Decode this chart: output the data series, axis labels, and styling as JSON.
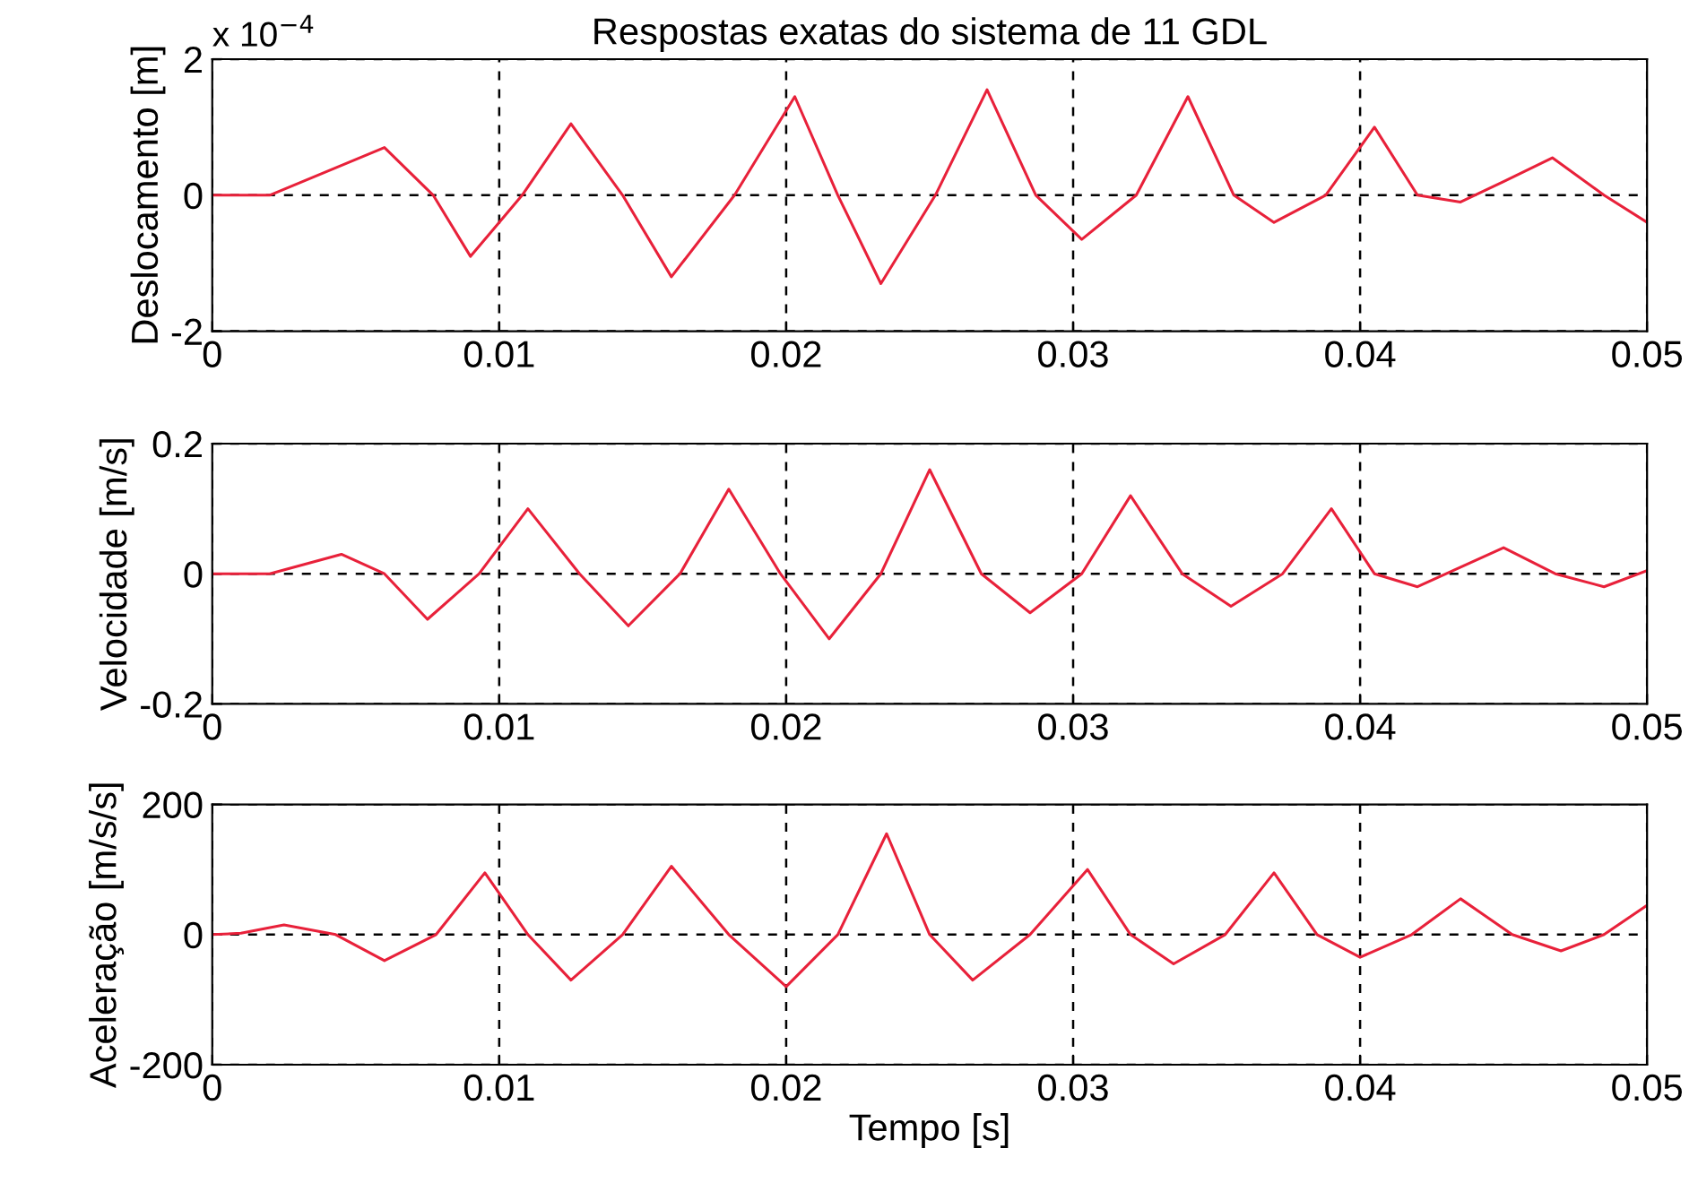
{
  "chart_data": [
    {
      "type": "line",
      "title": "Respostas exatas do sistema de 11 GDL",
      "ylabel": "Deslocamento [m]",
      "annotations": [
        "x 10$^{−4}$"
      ],
      "x": [
        0,
        0.002,
        0.006,
        0.0077,
        0.009,
        0.0108,
        0.0125,
        0.0143,
        0.016,
        0.0182,
        0.0203,
        0.0218,
        0.0233,
        0.0252,
        0.027,
        0.0287,
        0.0303,
        0.0322,
        0.034,
        0.0356,
        0.037,
        0.0388,
        0.0405,
        0.042,
        0.0435,
        0.045,
        0.0467,
        0.0485,
        0.05
      ],
      "series": [
        {
          "color": "#e8213a",
          "values": [
            0,
            0,
            0.7,
            0,
            -0.9,
            0,
            1.05,
            0,
            -1.2,
            0,
            1.45,
            0,
            -1.3,
            0,
            1.55,
            0,
            -0.65,
            0,
            1.45,
            0,
            -0.4,
            0,
            1.0,
            0,
            -0.1,
            0.2,
            0.55,
            0,
            -0.4
          ]
        }
      ],
      "xlim": [
        0,
        0.05
      ],
      "xticks": [
        0,
        0.01,
        0.02,
        0.03,
        0.04,
        0.05
      ],
      "ylim": [
        -2,
        2
      ],
      "yticks": [
        -2,
        0,
        2
      ],
      "grid": true,
      "line_style": "solid"
    },
    {
      "type": "line",
      "ylabel": "Velocidade [m/s]",
      "x": [
        0,
        0.002,
        0.0045,
        0.006,
        0.0075,
        0.0093,
        0.011,
        0.0128,
        0.0145,
        0.0163,
        0.018,
        0.0198,
        0.0215,
        0.0233,
        0.025,
        0.0268,
        0.0285,
        0.0303,
        0.032,
        0.0338,
        0.0355,
        0.0373,
        0.039,
        0.0405,
        0.042,
        0.0435,
        0.045,
        0.0468,
        0.0485,
        0.05
      ],
      "series": [
        {
          "color": "#e8213a",
          "values": [
            0,
            0,
            0.03,
            0,
            -0.07,
            0,
            0.1,
            0,
            -0.08,
            0,
            0.13,
            0,
            -0.1,
            0,
            0.16,
            0,
            -0.06,
            0,
            0.12,
            0,
            -0.05,
            0,
            0.1,
            0,
            -0.02,
            0.01,
            0.04,
            0,
            -0.02,
            0.005
          ]
        }
      ],
      "xlim": [
        0,
        0.05
      ],
      "xticks": [
        0,
        0.01,
        0.02,
        0.03,
        0.04,
        0.05
      ],
      "ylim": [
        -0.2,
        0.2
      ],
      "yticks": [
        -0.2,
        0,
        0.2
      ],
      "grid": true,
      "line_style": "solid"
    },
    {
      "type": "line",
      "ylabel": "Aceleração [m/s/s]",
      "xlabel": "Tempo [s]",
      "x": [
        0,
        0.001,
        0.0025,
        0.0043,
        0.006,
        0.0078,
        0.0095,
        0.011,
        0.0125,
        0.0143,
        0.016,
        0.018,
        0.02,
        0.0218,
        0.0235,
        0.025,
        0.0265,
        0.0285,
        0.0305,
        0.032,
        0.0335,
        0.0353,
        0.037,
        0.0385,
        0.04,
        0.0418,
        0.0435,
        0.0453,
        0.047,
        0.0485,
        0.05
      ],
      "series": [
        {
          "color": "#e8213a",
          "values": [
            0,
            2,
            15,
            0,
            -40,
            0,
            95,
            0,
            -70,
            0,
            105,
            0,
            -80,
            0,
            155,
            0,
            -70,
            0,
            100,
            0,
            -45,
            0,
            95,
            0,
            -35,
            0,
            55,
            0,
            -25,
            0,
            45
          ]
        }
      ],
      "xlim": [
        0,
        0.05
      ],
      "xticks": [
        0,
        0.01,
        0.02,
        0.03,
        0.04,
        0.05
      ],
      "ylim": [
        -200,
        200
      ],
      "yticks": [
        -200,
        0,
        200
      ],
      "grid": true,
      "line_style": "solid"
    }
  ]
}
